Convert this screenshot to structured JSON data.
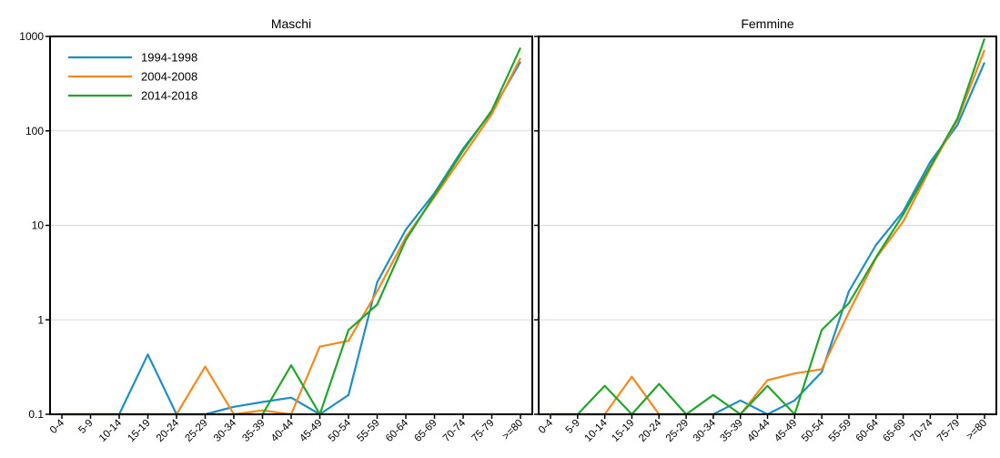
{
  "chart_data": {
    "type": "line",
    "yscale": "log",
    "ylim": [
      0.1,
      1000
    ],
    "yticks": [
      "0.1",
      "1",
      "10",
      "100",
      "1000"
    ],
    "grid": "horizontal",
    "legend_position": "top-left",
    "categories": [
      "0-4",
      "5-9",
      "10-14",
      "15-19",
      "20-24",
      "25-29",
      "30-34",
      "35-39",
      "40-44",
      "45-49",
      "50-54",
      "55-59",
      "60-64",
      "65-69",
      "70-74",
      "75-79",
      ">=80"
    ],
    "colors": {
      "1994-1998": "#1f8ec0",
      "2004-2008": "#f28a1e",
      "2014-2018": "#22a52a"
    },
    "panels": [
      {
        "title": "Maschi",
        "series": [
          {
            "name": "1994-1998",
            "values": [
              0.1,
              0.1,
              0.1,
              0.43,
              0.1,
              0.1,
              0.12,
              0.135,
              0.15,
              0.1,
              0.16,
              2.5,
              9,
              22,
              65,
              160,
              540
            ]
          },
          {
            "name": "2004-2008",
            "values": [
              0.1,
              0.1,
              0.1,
              0.1,
              0.1,
              0.32,
              0.1,
              0.11,
              0.1,
              0.52,
              0.6,
              2.0,
              7.5,
              20,
              55,
              150,
              590
            ]
          },
          {
            "name": "2014-2018",
            "values": [
              0.1,
              0.1,
              0.1,
              0.1,
              0.1,
              0.1,
              0.1,
              0.1,
              0.33,
              0.1,
              0.78,
              1.45,
              7.0,
              21,
              62,
              165,
              760
            ]
          }
        ]
      },
      {
        "title": "Femmine",
        "series": [
          {
            "name": "1994-1998",
            "values": [
              0.1,
              0.1,
              0.1,
              0.1,
              0.1,
              0.1,
              0.1,
              0.14,
              0.1,
              0.14,
              0.28,
              2.0,
              6.2,
              14,
              47,
              115,
              530
            ]
          },
          {
            "name": "2004-2008",
            "values": [
              0.1,
              0.1,
              0.1,
              0.25,
              0.1,
              0.1,
              0.1,
              0.1,
              0.23,
              0.27,
              0.3,
              1.2,
              4.5,
              11,
              40,
              130,
              720
            ]
          },
          {
            "name": "2014-2018",
            "values": [
              0.1,
              0.1,
              0.2,
              0.1,
              0.21,
              0.1,
              0.16,
              0.1,
              0.2,
              0.1,
              0.78,
              1.5,
              4.6,
              13,
              42,
              135,
              950
            ]
          }
        ]
      }
    ]
  }
}
